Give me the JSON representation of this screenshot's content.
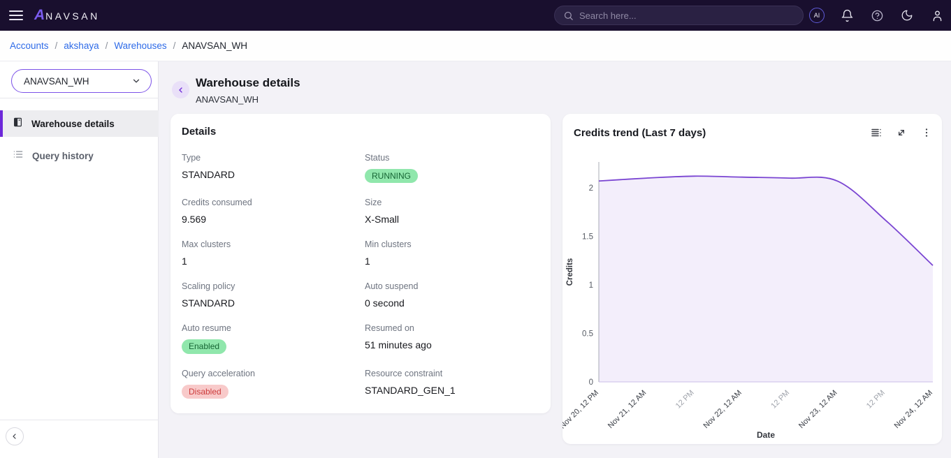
{
  "navbar": {
    "brand_a": "A",
    "brand_rest": "NAVSAN",
    "search_placeholder": "Search here...",
    "ai_label": "AI"
  },
  "breadcrumb": {
    "separator": "/",
    "items": [
      {
        "label": "Accounts",
        "current": false
      },
      {
        "label": "akshaya",
        "current": false
      },
      {
        "label": "Warehouses",
        "current": false
      },
      {
        "label": "ANAVSAN_WH",
        "current": true
      }
    ]
  },
  "sidebar": {
    "warehouse_selector": "ANAVSAN_WH",
    "items": [
      {
        "label": "Warehouse details",
        "icon": "warehouse-details-icon",
        "active": true
      },
      {
        "label": "Query history",
        "icon": "query-history-icon",
        "active": false
      }
    ]
  },
  "header": {
    "title": "Warehouse details",
    "subtitle": "ANAVSAN_WH"
  },
  "details_card": {
    "title": "Details",
    "fields": [
      {
        "label": "Type",
        "value": "STANDARD",
        "kind": "text"
      },
      {
        "label": "Status",
        "value": "RUNNING",
        "kind": "badge",
        "badge": "green"
      },
      {
        "label": "Credits consumed",
        "value": "9.569",
        "kind": "text"
      },
      {
        "label": "Size",
        "value": "X-Small",
        "kind": "text"
      },
      {
        "label": "Max clusters",
        "value": "1",
        "kind": "text"
      },
      {
        "label": "Min clusters",
        "value": "1",
        "kind": "text"
      },
      {
        "label": "Scaling policy",
        "value": "STANDARD",
        "kind": "text"
      },
      {
        "label": "Auto suspend",
        "value": "0 second",
        "kind": "text"
      },
      {
        "label": "Auto resume",
        "value": "Enabled",
        "kind": "badge",
        "badge": "green"
      },
      {
        "label": "Resumed on",
        "value": "51 minutes ago",
        "kind": "text"
      },
      {
        "label": "Query acceleration",
        "value": "Disabled",
        "kind": "badge",
        "badge": "red"
      },
      {
        "label": "Resource constraint",
        "value": "STANDARD_GEN_1",
        "kind": "text"
      }
    ]
  },
  "chart_card": {
    "title": "Credits trend (Last 7 days)"
  },
  "chart_data": {
    "type": "area",
    "title": "Credits trend (Last 7 days)",
    "xlabel": "Date",
    "ylabel": "Credits",
    "x_tick_labels": [
      "Nov 20, 12 PM",
      "Nov 21, 12 AM",
      "12 PM",
      "Nov 22, 12 AM",
      "12 PM",
      "Nov 23, 12 AM",
      "12 PM",
      "Nov 24, 12 AM"
    ],
    "x_tick_muted": [
      false,
      false,
      true,
      false,
      true,
      false,
      true,
      false
    ],
    "y_ticks": [
      0,
      0.5,
      1,
      1.5,
      2
    ],
    "ylim": [
      0,
      2.3
    ],
    "grid": false,
    "legend": false,
    "series": [
      {
        "name": "Credits",
        "values": [
          2.07,
          2.1,
          2.12,
          2.11,
          2.1,
          2.07,
          1.67,
          1.2
        ]
      }
    ],
    "line_color": "#7a45d2",
    "fill_color": "rgba(122,69,210,0.09)",
    "baseline_color": "#cbbfe8"
  },
  "colors": {
    "accent_purple": "#6d28d9",
    "link_blue": "#2e6be8",
    "badge_green_bg": "#90e7ac",
    "badge_green_text": "#166534",
    "badge_red_bg": "#f8caca",
    "badge_red_text": "#cd3d3d",
    "navbar_bg": "#190f2e"
  }
}
